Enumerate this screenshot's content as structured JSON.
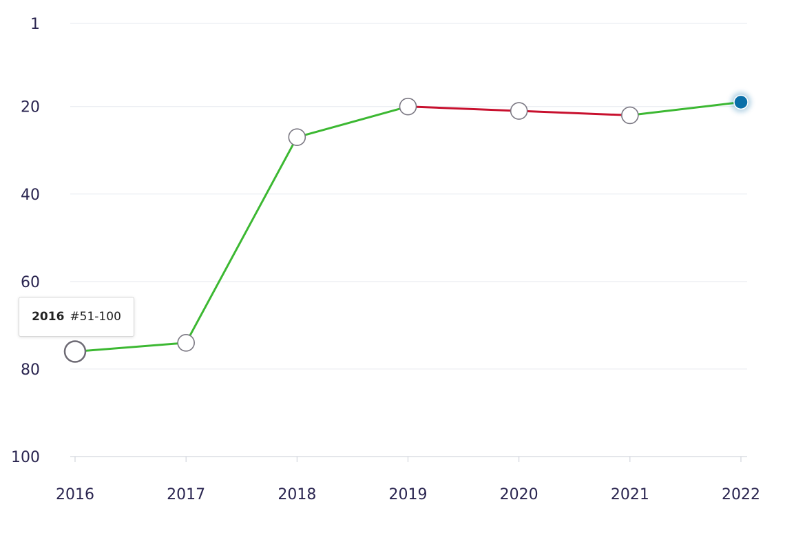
{
  "chart_data": {
    "type": "line",
    "title": "",
    "xlabel": "",
    "ylabel": "",
    "categories": [
      "2016",
      "2017",
      "2018",
      "2019",
      "2020",
      "2021",
      "2022"
    ],
    "values": [
      76,
      74,
      27,
      20,
      21,
      22,
      19
    ],
    "segment_colors": [
      "#3cb832",
      "#3cb832",
      "#3cb832",
      "#c8102e",
      "#c8102e",
      "#3cb832"
    ],
    "highlighted_point": "2022",
    "highlight_color": "#0a6fa8",
    "ylim": [
      100,
      1
    ],
    "y_inverted": true,
    "y_ticks": [
      "1",
      "20",
      "40",
      "60",
      "80",
      "100"
    ],
    "grid": true,
    "tooltip": {
      "year": "2016",
      "label": "#51-100"
    }
  }
}
